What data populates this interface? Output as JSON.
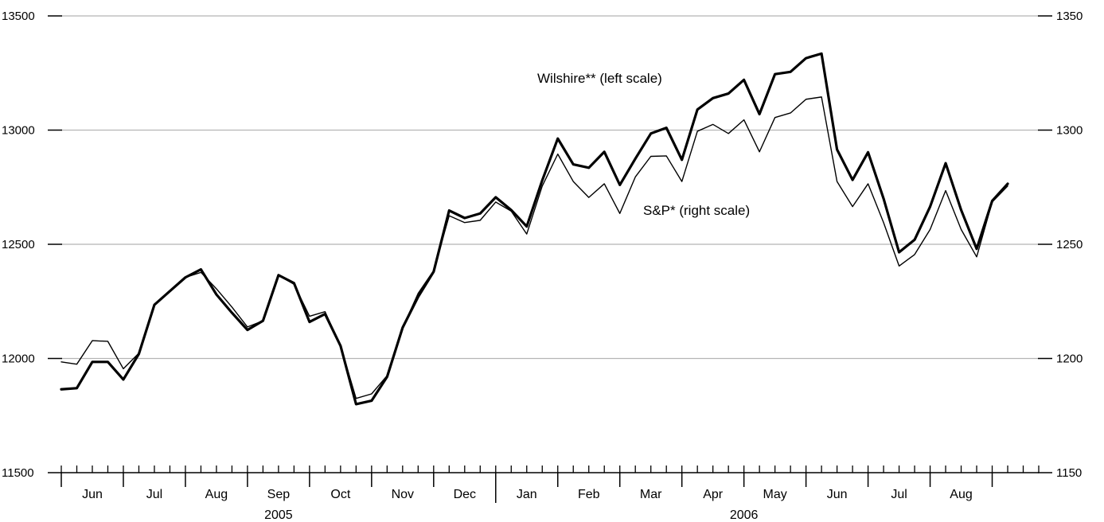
{
  "chart_data": {
    "type": "line",
    "title": "",
    "xlabel": "",
    "ylabel": "",
    "y_left": {
      "min": 11500,
      "max": 13500,
      "ticks": [
        11500,
        12000,
        12500,
        13000,
        13500
      ],
      "tick_labels": [
        "11500",
        "12000",
        "12500",
        "13000",
        "13500"
      ]
    },
    "y_right": {
      "min": 1150,
      "max": 1350,
      "ticks": [
        1150,
        1200,
        1250,
        1300,
        1350
      ],
      "tick_labels": [
        "1150",
        "1200",
        "1250",
        "1300",
        "1350"
      ]
    },
    "grid": true,
    "weeks_total": 63,
    "months": [
      {
        "label": "Jun",
        "start_week": 0,
        "end_week": 4
      },
      {
        "label": "Jul",
        "start_week": 4,
        "end_week": 8
      },
      {
        "label": "Aug",
        "start_week": 8,
        "end_week": 12
      },
      {
        "label": "Sep",
        "start_week": 12,
        "end_week": 16
      },
      {
        "label": "Oct",
        "start_week": 16,
        "end_week": 20
      },
      {
        "label": "Nov",
        "start_week": 20,
        "end_week": 24
      },
      {
        "label": "Dec",
        "start_week": 24,
        "end_week": 28
      },
      {
        "label": "Jan",
        "start_week": 28,
        "end_week": 32
      },
      {
        "label": "Feb",
        "start_week": 32,
        "end_week": 36
      },
      {
        "label": "Mar",
        "start_week": 36,
        "end_week": 40
      },
      {
        "label": "Apr",
        "start_week": 40,
        "end_week": 44
      },
      {
        "label": "May",
        "start_week": 44,
        "end_week": 48
      },
      {
        "label": "Jun",
        "start_week": 48,
        "end_week": 52
      },
      {
        "label": "Jul",
        "start_week": 52,
        "end_week": 56
      },
      {
        "label": "Aug",
        "start_week": 56,
        "end_week": 60
      }
    ],
    "years": [
      {
        "label": "2005",
        "start_week": 0,
        "end_week": 28
      },
      {
        "label": "2006",
        "start_week": 28,
        "end_week": 60
      }
    ],
    "year_boundary_week": 28,
    "annotations": {
      "wilshire": "Wilshire** (left scale)",
      "sp": "S&P* (right scale)"
    },
    "series": [
      {
        "name": "Wilshire** (left scale)",
        "axis": "left",
        "weight": "bold",
        "values": [
          11865,
          11870,
          11985,
          11985,
          11908,
          12020,
          12235,
          12295,
          12355,
          12390,
          12280,
          12200,
          12125,
          12165,
          12365,
          12330,
          12160,
          12195,
          12055,
          11800,
          11815,
          11920,
          12135,
          12270,
          12380,
          12648,
          12615,
          12635,
          12706,
          12650,
          12578,
          12780,
          12963,
          12850,
          12835,
          12905,
          12760,
          12875,
          12985,
          13010,
          12870,
          13090,
          13140,
          13160,
          13220,
          13070,
          13245,
          13255,
          13315,
          13335,
          12915,
          12782,
          12903,
          12700,
          12465,
          12520,
          12665,
          12855,
          12650,
          12480,
          12690,
          12765
        ]
      },
      {
        "name": "S&P* (right scale)",
        "axis": "right",
        "weight": "thin",
        "values": [
          1198.5,
          1197.5,
          1207.8,
          1207.5,
          1195.5,
          1202.3,
          1223.5,
          1229.5,
          1235.5,
          1237.7,
          1230.5,
          1222.5,
          1213.8,
          1216.5,
          1236.5,
          1232.5,
          1218.5,
          1220.5,
          1205.5,
          1182.5,
          1184.5,
          1192.5,
          1213.5,
          1228.5,
          1238.5,
          1262.5,
          1259.5,
          1260.5,
          1268.5,
          1264.5,
          1254.5,
          1275.5,
          1289.5,
          1277.5,
          1270.5,
          1276.5,
          1263.5,
          1279.5,
          1288.5,
          1288.7,
          1277.5,
          1299.5,
          1302.5,
          1298.5,
          1304.5,
          1290.5,
          1305.5,
          1307.5,
          1313.5,
          1314.5,
          1277.5,
          1266.5,
          1276.5,
          1259.5,
          1240.5,
          1245.5,
          1256.5,
          1273.5,
          1256.5,
          1244.5,
          1268.5,
          1275.5
        ]
      }
    ]
  }
}
